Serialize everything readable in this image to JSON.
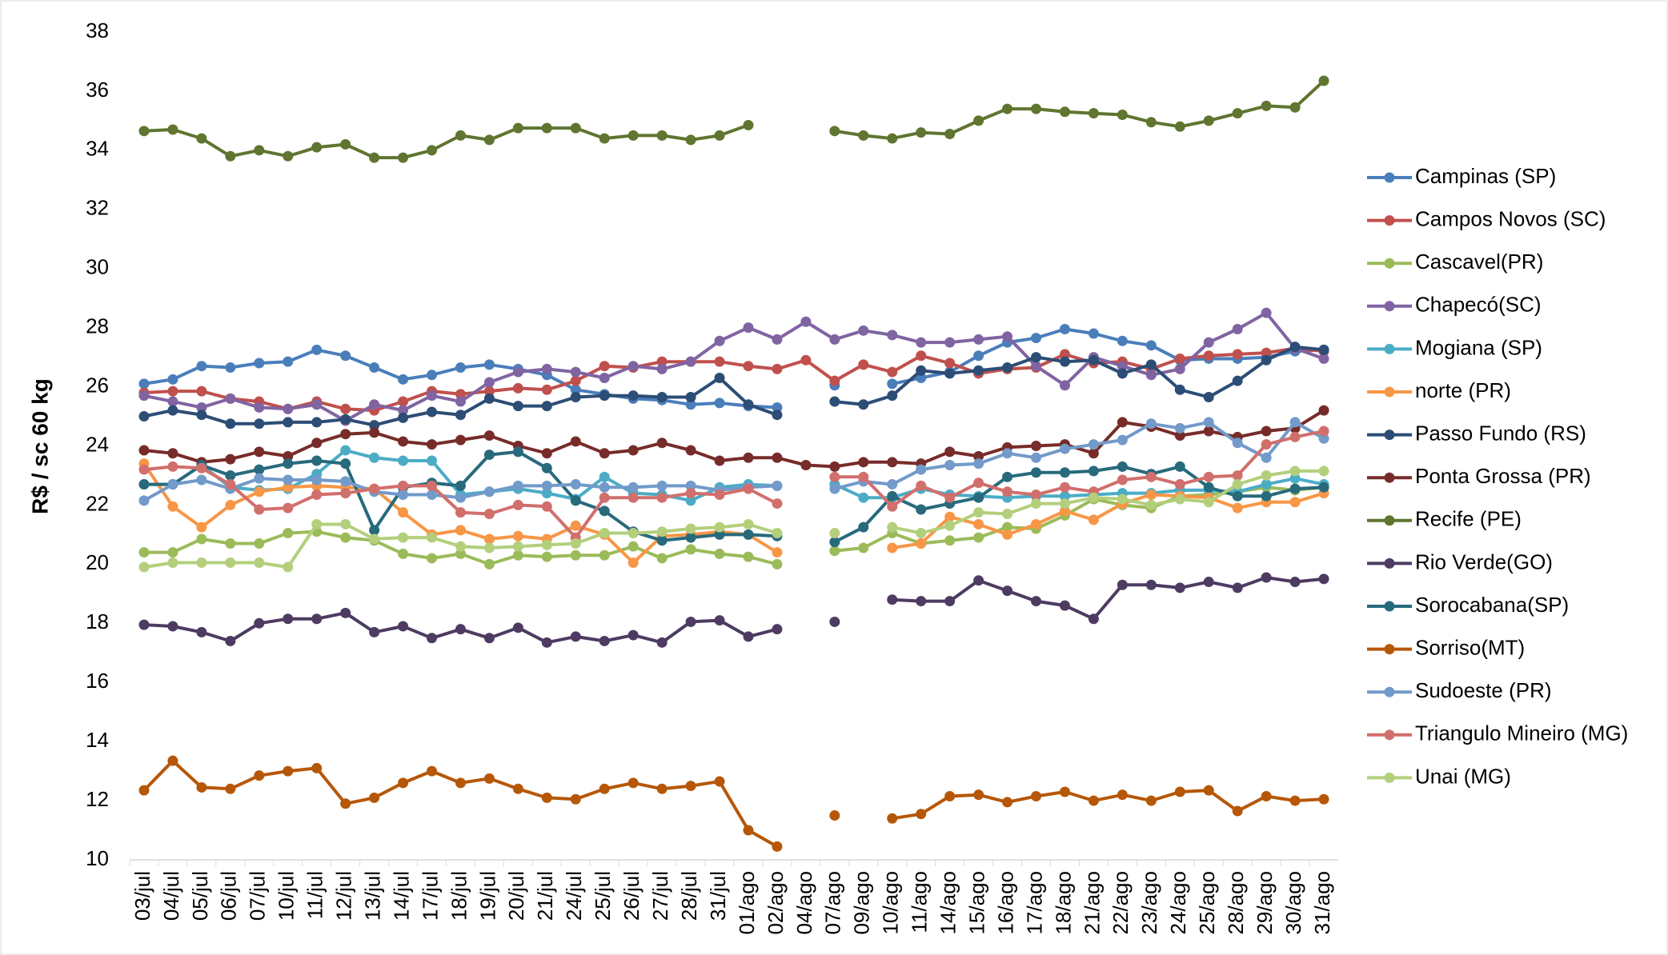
{
  "chart_data": {
    "type": "line",
    "y_label": "R$ / sc 60 kg",
    "categories": [
      "03/jul",
      "04/jul",
      "05/jul",
      "06/jul",
      "07/jul",
      "10/jul",
      "11/jul",
      "12/jul",
      "13/jul",
      "14/jul",
      "17/jul",
      "18/jul",
      "19/jul",
      "20/jul",
      "21/jul",
      "24/jul",
      "25/jul",
      "26/jul",
      "27/jul",
      "28/jul",
      "31/jul",
      "01/ago",
      "02/ago",
      "04/ago",
      "07/ago",
      "09/ago",
      "10/ago",
      "11/ago",
      "14/ago",
      "15/ago",
      "16/ago",
      "17/ago",
      "18/ago",
      "21/ago",
      "22/ago",
      "23/ago",
      "24/ago",
      "25/ago",
      "28/ago",
      "29/ago",
      "30/ago",
      "31/ago"
    ],
    "ylim": [
      10,
      38
    ],
    "yticks": [
      10,
      12,
      14,
      16,
      18,
      20,
      22,
      24,
      26,
      28,
      30,
      32,
      34,
      36,
      38
    ],
    "grid": false,
    "legend": "right",
    "series": [
      {
        "name": "Campinas (SP)",
        "color": "#4a7ebb",
        "values": [
          26.1,
          26.25,
          26.7,
          26.65,
          26.8,
          26.85,
          27.25,
          27.05,
          26.65,
          26.25,
          26.4,
          26.65,
          26.75,
          26.6,
          26.4,
          25.9,
          25.75,
          25.6,
          25.55,
          25.4,
          25.45,
          25.35,
          25.3,
          null,
          26.05,
          null,
          26.1,
          26.3,
          26.5,
          27.05,
          27.5,
          27.65,
          27.95,
          27.8,
          27.55,
          27.4,
          26.9,
          26.95,
          26.95,
          27.0,
          27.2,
          27.25
        ]
      },
      {
        "name": "Campos Novos (SC)",
        "color": "#c0504d",
        "values": [
          25.8,
          25.85,
          25.85,
          25.6,
          25.5,
          25.25,
          25.5,
          25.25,
          25.2,
          25.5,
          25.85,
          25.75,
          25.85,
          25.95,
          25.9,
          26.2,
          26.7,
          26.65,
          26.85,
          26.85,
          26.85,
          26.7,
          26.6,
          26.9,
          26.2,
          26.75,
          26.5,
          27.05,
          26.8,
          26.45,
          26.6,
          26.65,
          27.1,
          26.8,
          26.85,
          26.6,
          26.95,
          27.05,
          27.1,
          27.15,
          27.3,
          27.2
        ]
      },
      {
        "name": "Cascavel(PR)",
        "color": "#9bbb59",
        "values": [
          20.4,
          20.4,
          20.85,
          20.7,
          20.7,
          21.05,
          21.1,
          20.9,
          20.8,
          20.35,
          20.2,
          20.35,
          20.0,
          20.3,
          20.25,
          20.3,
          20.3,
          20.6,
          20.2,
          20.5,
          20.35,
          20.25,
          20.0,
          null,
          20.45,
          20.55,
          21.05,
          20.7,
          20.8,
          20.9,
          21.25,
          21.2,
          21.65,
          22.2,
          22.0,
          21.9,
          22.3,
          22.35,
          22.45,
          22.6,
          22.5,
          22.6
        ]
      },
      {
        "name": "Chapecó(SC)",
        "color": "#8064a2",
        "values": [
          25.7,
          25.5,
          25.3,
          25.6,
          25.3,
          25.25,
          25.4,
          24.85,
          25.4,
          25.2,
          25.7,
          25.5,
          26.15,
          26.5,
          26.6,
          26.5,
          26.3,
          26.7,
          26.6,
          26.85,
          27.55,
          28.0,
          27.6,
          28.2,
          27.6,
          27.9,
          27.75,
          27.5,
          27.5,
          27.6,
          27.7,
          26.7,
          26.05,
          27.0,
          26.7,
          26.4,
          26.6,
          27.5,
          27.95,
          28.5,
          27.3,
          26.95
        ]
      },
      {
        "name": "Mogiana (SP)",
        "color": "#4bacc6",
        "values": [
          22.7,
          22.7,
          23.35,
          22.6,
          22.5,
          22.55,
          23.05,
          23.85,
          23.6,
          23.5,
          23.5,
          22.35,
          22.45,
          22.55,
          22.4,
          22.2,
          22.95,
          22.4,
          22.35,
          22.15,
          22.6,
          22.7,
          22.65,
          null,
          22.7,
          22.25,
          22.25,
          22.55,
          22.35,
          22.3,
          22.25,
          22.3,
          22.3,
          22.35,
          22.4,
          22.4,
          22.5,
          22.5,
          22.45,
          22.7,
          22.9,
          22.7
        ]
      },
      {
        "name": "norte (PR)",
        "color": "#f79646",
        "values": [
          23.4,
          21.95,
          21.25,
          22.0,
          22.45,
          22.6,
          22.65,
          22.6,
          22.55,
          21.75,
          21.0,
          21.15,
          20.85,
          20.95,
          20.85,
          21.3,
          21.0,
          20.05,
          20.95,
          21.0,
          21.1,
          21.0,
          20.4,
          null,
          null,
          null,
          20.55,
          20.7,
          21.6,
          21.35,
          21.0,
          21.35,
          21.8,
          21.5,
          22.05,
          22.35,
          22.3,
          22.25,
          21.9,
          22.1,
          22.1,
          22.4
        ]
      },
      {
        "name": "Passo Fundo (RS)",
        "color": "#2c4d75",
        "values": [
          25.0,
          25.2,
          25.05,
          24.75,
          24.75,
          24.8,
          24.8,
          24.9,
          24.7,
          24.95,
          25.15,
          25.05,
          25.6,
          25.35,
          25.35,
          25.65,
          25.7,
          25.7,
          25.65,
          25.65,
          26.3,
          25.4,
          25.05,
          null,
          25.5,
          25.4,
          25.7,
          26.55,
          26.45,
          26.55,
          26.65,
          27.0,
          26.85,
          26.9,
          26.45,
          26.75,
          25.9,
          25.65,
          26.2,
          26.9,
          27.35,
          27.25
        ]
      },
      {
        "name": "Ponta Grossa (PR)",
        "color": "#772c2a",
        "values": [
          23.85,
          23.75,
          23.45,
          23.55,
          23.8,
          23.65,
          24.1,
          24.4,
          24.45,
          24.15,
          24.05,
          24.2,
          24.35,
          24.0,
          23.75,
          24.15,
          23.75,
          23.85,
          24.1,
          23.85,
          23.5,
          23.6,
          23.6,
          23.35,
          23.3,
          23.45,
          23.45,
          23.4,
          23.8,
          23.65,
          23.95,
          24.0,
          24.05,
          23.75,
          24.8,
          24.65,
          24.35,
          24.5,
          24.3,
          24.5,
          24.6,
          25.2
        ]
      },
      {
        "name": "Recife (PE)",
        "color": "#5f7530",
        "values": [
          34.65,
          34.7,
          34.4,
          33.8,
          34.0,
          33.8,
          34.1,
          34.2,
          33.75,
          33.75,
          34.0,
          34.5,
          34.35,
          34.75,
          34.75,
          34.75,
          34.4,
          34.5,
          34.5,
          34.35,
          34.5,
          34.85,
          null,
          null,
          34.65,
          34.5,
          34.4,
          34.6,
          34.55,
          35.0,
          35.4,
          35.4,
          35.3,
          35.25,
          35.2,
          34.95,
          34.8,
          35.0,
          35.25,
          35.5,
          35.45,
          36.35
        ]
      },
      {
        "name": "Rio Verde(GO)",
        "color": "#4d3b62",
        "values": [
          17.95,
          17.9,
          17.7,
          17.4,
          18.0,
          18.15,
          18.15,
          18.35,
          17.7,
          17.9,
          17.5,
          17.8,
          17.5,
          17.85,
          17.35,
          17.55,
          17.4,
          17.6,
          17.35,
          18.05,
          18.1,
          17.55,
          17.8,
          null,
          18.05,
          null,
          18.8,
          18.75,
          18.75,
          19.45,
          19.1,
          18.75,
          18.6,
          18.15,
          19.3,
          19.3,
          19.2,
          19.4,
          19.2,
          19.55,
          19.4,
          19.5
        ]
      },
      {
        "name": "Sorocabana(SP)",
        "color": "#276a7c",
        "values": [
          22.7,
          22.7,
          23.35,
          23.0,
          23.2,
          23.4,
          23.5,
          23.4,
          21.15,
          22.6,
          22.75,
          22.65,
          23.7,
          23.8,
          23.25,
          22.15,
          21.8,
          21.1,
          20.8,
          20.9,
          21.0,
          21.0,
          20.95,
          null,
          20.75,
          21.25,
          22.3,
          21.85,
          22.05,
          22.25,
          22.95,
          23.1,
          23.1,
          23.15,
          23.3,
          23.05,
          23.3,
          22.6,
          22.3,
          22.3,
          22.55,
          22.6
        ]
      },
      {
        "name": "Sorriso(MT)",
        "color": "#b65708",
        "values": [
          12.35,
          13.35,
          12.45,
          12.4,
          12.85,
          13.0,
          13.1,
          11.9,
          12.1,
          12.6,
          13.0,
          12.6,
          12.75,
          12.4,
          12.1,
          12.05,
          12.4,
          12.6,
          12.4,
          12.5,
          12.65,
          11.0,
          10.45,
          null,
          11.5,
          null,
          11.4,
          11.55,
          12.15,
          12.2,
          11.95,
          12.15,
          12.3,
          12.0,
          12.2,
          12.0,
          12.3,
          12.35,
          11.65,
          12.15,
          12.0,
          12.05
        ]
      },
      {
        "name": "Sudoeste (PR)",
        "color": "#729aca",
        "values": [
          22.15,
          22.7,
          22.85,
          22.55,
          22.9,
          22.85,
          22.85,
          22.8,
          22.45,
          22.35,
          22.35,
          22.25,
          22.45,
          22.65,
          22.65,
          22.7,
          22.6,
          22.6,
          22.65,
          22.65,
          22.5,
          22.6,
          22.65,
          null,
          22.55,
          22.8,
          22.7,
          23.2,
          23.35,
          23.4,
          23.75,
          23.6,
          23.9,
          24.05,
          24.2,
          24.75,
          24.6,
          24.8,
          24.1,
          23.6,
          24.8,
          24.25
        ]
      },
      {
        "name": "Triangulo Mineiro (MG)",
        "color": "#d16f6c",
        "values": [
          23.2,
          23.3,
          23.25,
          22.7,
          21.85,
          21.9,
          22.35,
          22.4,
          22.55,
          22.65,
          22.65,
          21.75,
          21.7,
          22.0,
          21.95,
          20.9,
          22.25,
          22.25,
          22.25,
          22.4,
          22.35,
          22.55,
          22.05,
          null,
          22.95,
          22.95,
          21.95,
          22.65,
          22.25,
          22.75,
          22.45,
          22.35,
          22.6,
          22.45,
          22.85,
          22.95,
          22.7,
          22.95,
          23.0,
          24.05,
          24.3,
          24.5
        ]
      },
      {
        "name": "Unai (MG)",
        "color": "#b3cf7c",
        "values": [
          19.9,
          20.05,
          20.05,
          20.05,
          20.05,
          19.9,
          21.35,
          21.35,
          20.85,
          20.9,
          20.9,
          20.6,
          20.55,
          20.6,
          20.65,
          20.7,
          21.05,
          21.05,
          21.1,
          21.2,
          21.25,
          21.35,
          21.05,
          null,
          21.05,
          null,
          21.25,
          21.05,
          21.3,
          21.75,
          21.7,
          22.05,
          22.05,
          22.25,
          22.2,
          22.0,
          22.2,
          22.1,
          22.7,
          23.0,
          23.15,
          23.15
        ]
      }
    ]
  }
}
